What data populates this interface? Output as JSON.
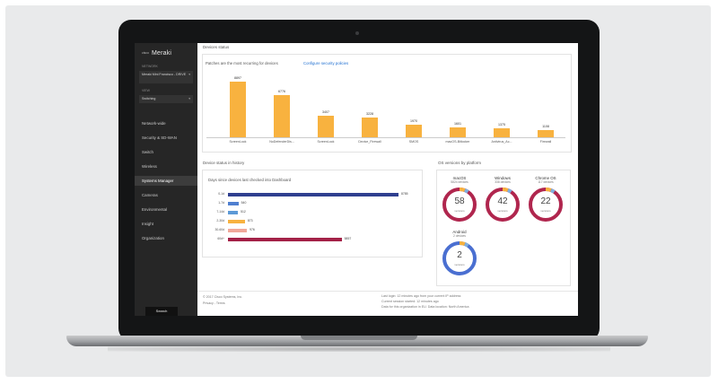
{
  "sidebar": {
    "logo_mark": "cisco",
    "logo_text": "Meraki",
    "network_label": "NETWORK",
    "network_value": "Meraki Mini Francisco - DRIVE",
    "view_label": "VIEW",
    "view_value": "Switching",
    "items": [
      "Network-wide",
      "Security & SD-WAN",
      "Switch",
      "Wireless",
      "Systems Manager",
      "Cameras",
      "Environmental",
      "Insight",
      "Organization"
    ],
    "active_index": 4,
    "bottom_button": "Search"
  },
  "device_status": {
    "title": "Devices status",
    "subtitle": "Patches are the most recurring for devices",
    "link": "Configure security policies",
    "bars": [
      {
        "category": "ScreenLock",
        "value": "8897"
      },
      {
        "category": "NoDefenderDis...",
        "value": "6776"
      },
      {
        "category": "ScreenLock",
        "value": "3407"
      },
      {
        "category": "Device_Firewall",
        "value": "3228"
      },
      {
        "category": "SMOS",
        "value": "1970"
      },
      {
        "category": "macOS-Bitlocker",
        "value": "1601"
      },
      {
        "category": "Antivirus_Ac...",
        "value": "1375"
      },
      {
        "category": "Firewall",
        "value": "1108"
      }
    ],
    "bar_color": "#f8b23f"
  },
  "inventory": {
    "title": "Device status in history",
    "subtitle": "Days since devices last checked into Dashboard",
    "rows": [
      {
        "label": "0-1d",
        "value": "8785",
        "color": "#2f3f8f"
      },
      {
        "label": "1-7d",
        "value": "540",
        "color": "#4f7fd0"
      },
      {
        "label": "7-14d",
        "value": "512",
        "color": "#5d9ad6"
      },
      {
        "label": "2-30d",
        "value": "873",
        "color": "#f8b23f"
      },
      {
        "label": "30-60d",
        "value": "976",
        "color": "#f0a89a"
      },
      {
        "label": "60d+",
        "value": "5857",
        "color": "#a32147"
      }
    ]
  },
  "os_versions": {
    "title": "OS versions by platform",
    "cards": [
      {
        "name": "macOS",
        "sub": "5824 devices",
        "number": "58",
        "unit": "versions",
        "color": "#b0264e"
      },
      {
        "name": "Windows",
        "sub": "338 devices",
        "number": "42",
        "unit": "versions",
        "color": "#b0264e"
      },
      {
        "name": "Chrome OS",
        "sub": "117 devices",
        "number": "22",
        "unit": "versions",
        "color": "#b0264e"
      },
      {
        "name": "Android",
        "sub": "2 devices",
        "number": "2",
        "unit": "versions",
        "color": "#4a6fd1"
      }
    ]
  },
  "footer": {
    "copyright": "© 2017 Cisco Systems, Inc.",
    "links": "Privacy - Terms",
    "login_info": "Last login: 12 minutes ago from your current IP address",
    "session": "Current session started: 12 minutes ago",
    "data_note": "Data for this organization in EU. Data location: North America"
  }
}
